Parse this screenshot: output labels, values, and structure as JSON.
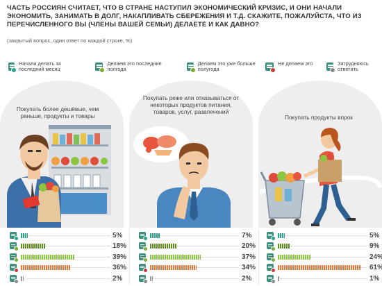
{
  "header": {
    "title": "Часть россиян считает, что в стране наступил экономический кризис, и они начали экономить, занимать в долг, накапливать сбережения и т.д. Скажите, пожалуйста, что из перечисленного Вы (члены вашей семьи) делаете и как давно?",
    "subtitle": "(закрытый вопрос, один ответ по каждой строке, %)"
  },
  "legend": [
    {
      "label": "Начали делать за последний месяц",
      "color": "#2aa28a",
      "icon": "calendar-new-icon"
    },
    {
      "label": "Делаем это последние полгода",
      "color": "#7aab2e",
      "icon": "calendar-halfyear-icon"
    },
    {
      "label": "Делаем это уже больше полугода",
      "color": "#7aab2e",
      "icon": "calendar-long-icon"
    },
    {
      "label": "Не делаем это",
      "color": "#c33a3a",
      "icon": "calendar-no-icon"
    },
    {
      "label": "Затрудняюсь ответить",
      "color": "#8b8b8b",
      "icon": "calendar-unsure-icon"
    }
  ],
  "panels": [
    {
      "label": "Покупать более дешёвые, чем раньше, продукты и товары",
      "illustration": "shopper-icon",
      "rows": [
        {
          "value": 5,
          "text": "5%",
          "color": "#2aa28a"
        },
        {
          "value": 18,
          "text": "18%",
          "color": "#5f8f1f"
        },
        {
          "value": 39,
          "text": "39%",
          "color": "#8cc63f"
        },
        {
          "value": 36,
          "text": "36%",
          "color": "#e2793b"
        },
        {
          "value": 2,
          "text": "2%",
          "color": "#9a9a9a"
        }
      ]
    },
    {
      "label": "Покупать реже или отказываться от некоторых продуктов питания, товаров, услуг, развлечений",
      "illustration": "thinking-man-icon",
      "rows": [
        {
          "value": 7,
          "text": "7%",
          "color": "#2aa28a"
        },
        {
          "value": 20,
          "text": "20%",
          "color": "#5f8f1f"
        },
        {
          "value": 37,
          "text": "37%",
          "color": "#8cc63f"
        },
        {
          "value": 34,
          "text": "34%",
          "color": "#e2793b"
        },
        {
          "value": 2,
          "text": "2%",
          "color": "#9a9a9a"
        }
      ]
    },
    {
      "label": "Покупать продукты впрок",
      "illustration": "shopping-cart-icon",
      "rows": [
        {
          "value": 5,
          "text": "5%",
          "color": "#2aa28a"
        },
        {
          "value": 9,
          "text": "9%",
          "color": "#5f8f1f"
        },
        {
          "value": 24,
          "text": "24%",
          "color": "#8cc63f"
        },
        {
          "value": 61,
          "text": "61%",
          "color": "#e2793b"
        },
        {
          "value": 1,
          "text": "1%",
          "color": "#9a9a9a"
        }
      ]
    }
  ]
}
